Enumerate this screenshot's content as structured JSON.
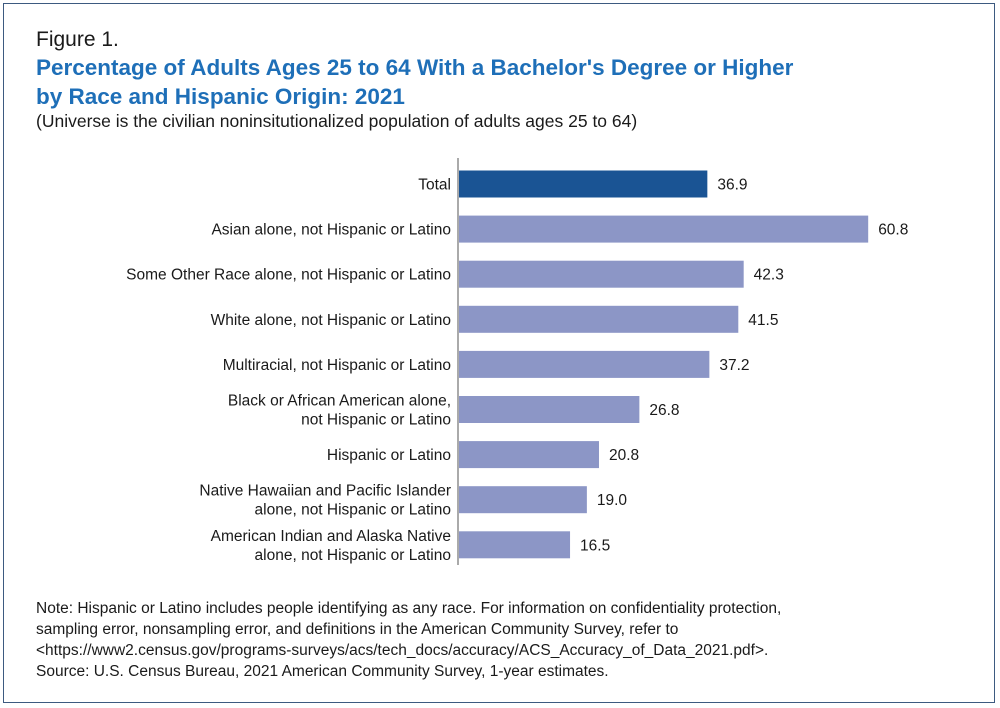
{
  "figure_label": "Figure 1.",
  "title_line1": "Percentage of Adults Ages 25 to 64 With a Bachelor's Degree or Higher",
  "title_line2": "by Race and Hispanic Origin: 2021",
  "subtitle": "(Universe is the civilian noninsitutionalized population of adults ages 25 to 64)",
  "note": {
    "line1": "Note: Hispanic or Latino includes people identifying as any race. For information on confidentiality protection,",
    "line2": "sampling error, nonsampling error, and definitions in the American Community Survey, refer to",
    "line3": "<https://www2.census.gov/programs-surveys/acs/tech_docs/accuracy/ACS_Accuracy_of_Data_2021.pdf>.",
    "source": "Source: U.S. Census Bureau, 2021 American Community Survey, 1-year estimates."
  },
  "colors": {
    "total_bar": "#1a5494",
    "group_bar": "#8c96c6",
    "title": "#1e6fb8"
  },
  "chart_data": {
    "type": "bar",
    "orientation": "horizontal",
    "title": "Percentage of Adults Ages 25 to 64 With a Bachelor's Degree or Higher by Race and Hispanic Origin: 2021",
    "xlabel": "",
    "ylabel": "",
    "xlim": [
      0,
      63
    ],
    "grid": false,
    "categories": [
      [
        "Total"
      ],
      [
        "Asian alone, not Hispanic or Latino"
      ],
      [
        "Some Other Race alone, not Hispanic or Latino"
      ],
      [
        "White alone, not Hispanic or Latino"
      ],
      [
        "Multiracial, not Hispanic or Latino"
      ],
      [
        "Black or African American alone,",
        "not Hispanic or Latino"
      ],
      [
        "Hispanic or Latino"
      ],
      [
        "Native Hawaiian and Pacific Islander",
        "alone, not Hispanic or Latino"
      ],
      [
        "American Indian and Alaska Native",
        "alone, not Hispanic or Latino"
      ]
    ],
    "values": [
      36.9,
      60.8,
      42.3,
      41.5,
      37.2,
      26.8,
      20.8,
      19.0,
      16.5
    ],
    "value_labels": [
      "36.9",
      "60.8",
      "42.3",
      "41.5",
      "37.2",
      "26.8",
      "20.8",
      "19.0",
      "16.5"
    ],
    "highlight_index": 0
  }
}
